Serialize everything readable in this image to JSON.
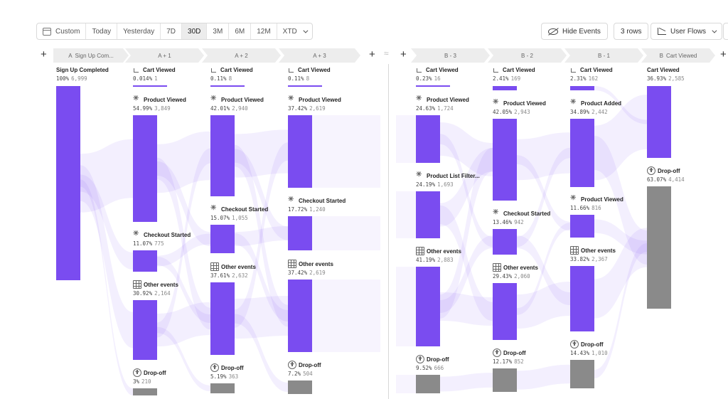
{
  "toolbar": {
    "ranges": [
      {
        "label": "Custom",
        "icon": "calendar-icon",
        "active": false
      },
      {
        "label": "Today",
        "active": false
      },
      {
        "label": "Yesterday",
        "active": false
      },
      {
        "label": "7D",
        "active": false
      },
      {
        "label": "30D",
        "active": true
      },
      {
        "label": "3M",
        "active": false
      },
      {
        "label": "6M",
        "active": false
      },
      {
        "label": "12M",
        "active": false
      },
      {
        "label": "XTD",
        "active": false,
        "dropdown": true
      }
    ],
    "hide_events": {
      "label": "Hide Events",
      "icon": "eye-slash-icon"
    },
    "rows": {
      "label": "3 rows"
    },
    "view": {
      "label": "User Flows",
      "icon": "flows-chart-icon"
    }
  },
  "accent": "#7a4cf0",
  "dropoff_color": "#8a8a8a",
  "forward": {
    "steps": [
      {
        "label": "Sign Up Com...",
        "letter": "A"
      },
      {
        "label": "A + 1"
      },
      {
        "label": "A + 2"
      },
      {
        "label": "A + 3"
      }
    ]
  },
  "reverse": {
    "steps": [
      {
        "label": "B - 3"
      },
      {
        "label": "B - 2"
      },
      {
        "label": "B - 1"
      },
      {
        "label": "Cart Viewed",
        "letter": "B"
      }
    ]
  },
  "separator_glyph": "≈",
  "nodes": {
    "a0": {
      "name": "Sign Up Completed",
      "pct": "100%",
      "count": "6,999"
    },
    "a1_cart": {
      "name": "Cart Viewed",
      "pct": "0.014%",
      "count": "1"
    },
    "a1_pv": {
      "name": "Product Viewed",
      "pct": "54.99%",
      "count": "3,849"
    },
    "a1_cs": {
      "name": "Checkout Started",
      "pct": "11.07%",
      "count": "775"
    },
    "a1_oe": {
      "name": "Other events",
      "pct": "30.92%",
      "count": "2,164"
    },
    "a1_do": {
      "name": "Drop-off",
      "pct": "3%",
      "count": "210"
    },
    "a2_cart": {
      "name": "Cart Viewed",
      "pct": "0.11%",
      "count": "8"
    },
    "a2_pv": {
      "name": "Product Viewed",
      "pct": "42.01%",
      "count": "2,940"
    },
    "a2_cs": {
      "name": "Checkout Started",
      "pct": "15.07%",
      "count": "1,055"
    },
    "a2_oe": {
      "name": "Other events",
      "pct": "37.61%",
      "count": "2,632"
    },
    "a2_do": {
      "name": "Drop-off",
      "pct": "5.19%",
      "count": "363"
    },
    "a3_cart": {
      "name": "Cart Viewed",
      "pct": "0.11%",
      "count": "8"
    },
    "a3_pv": {
      "name": "Product Viewed",
      "pct": "37.42%",
      "count": "2,619"
    },
    "a3_cs": {
      "name": "Checkout Started",
      "pct": "17.72%",
      "count": "1,240"
    },
    "a3_oe": {
      "name": "Other events",
      "pct": "37.42%",
      "count": "2,619"
    },
    "a3_do": {
      "name": "Drop-off",
      "pct": "7.2%",
      "count": "504"
    },
    "b3_cart": {
      "name": "Cart Viewed",
      "pct": "0.23%",
      "count": "16"
    },
    "b3_pv": {
      "name": "Product Viewed",
      "pct": "24.63%",
      "count": "1,724"
    },
    "b3_plf": {
      "name": "Product List Filter...",
      "pct": "24.19%",
      "count": "1,693"
    },
    "b3_oe": {
      "name": "Other events",
      "pct": "41.19%",
      "count": "2,883"
    },
    "b3_do": {
      "name": "Drop-off",
      "pct": "9.52%",
      "count": "666"
    },
    "b2_cart": {
      "name": "Cart Viewed",
      "pct": "2.41%",
      "count": "169"
    },
    "b2_pv": {
      "name": "Product Viewed",
      "pct": "42.05%",
      "count": "2,943"
    },
    "b2_cs": {
      "name": "Checkout Started",
      "pct": "13.46%",
      "count": "942"
    },
    "b2_oe": {
      "name": "Other events",
      "pct": "29.43%",
      "count": "2,060"
    },
    "b2_do": {
      "name": "Drop-off",
      "pct": "12.17%",
      "count": "852"
    },
    "b1_cart": {
      "name": "Cart Viewed",
      "pct": "2.31%",
      "count": "162"
    },
    "b1_pa": {
      "name": "Product Added",
      "pct": "34.89%",
      "count": "2,442"
    },
    "b1_pv": {
      "name": "Product Viewed",
      "pct": "11.66%",
      "count": "816"
    },
    "b1_oe": {
      "name": "Other events",
      "pct": "33.82%",
      "count": "2,367"
    },
    "b1_do": {
      "name": "Drop-off",
      "pct": "14.43%",
      "count": "1,010"
    },
    "b0_cart": {
      "name": "Cart Viewed",
      "pct": "36.93%",
      "count": "2,585"
    },
    "b0_do": {
      "name": "Drop-off",
      "pct": "63.07%",
      "count": "4,414"
    }
  }
}
